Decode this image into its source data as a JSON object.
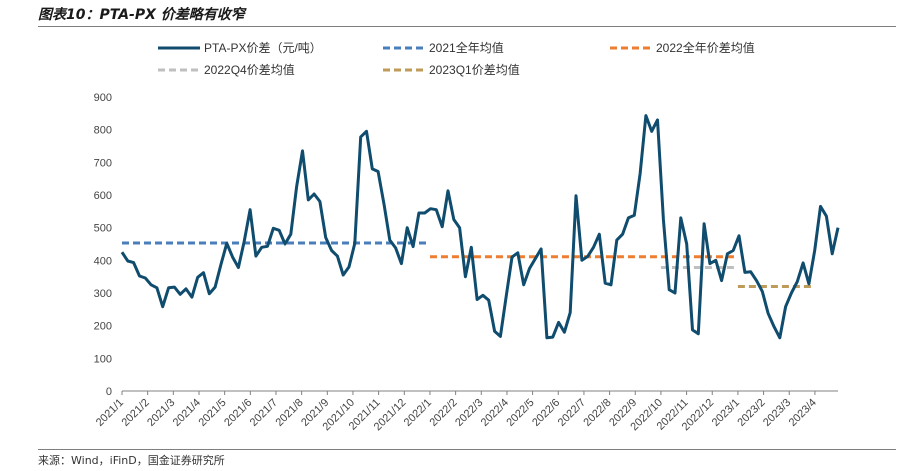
{
  "figure": {
    "title": "图表10：PTA-PX 价差略有收窄",
    "source": "来源：Wind，iFinD，国金证券研究所"
  },
  "chart_data": {
    "type": "line",
    "ylim": [
      0,
      900
    ],
    "yticks": [
      "0",
      "100",
      "200",
      "300",
      "400",
      "500",
      "600",
      "700",
      "800",
      "900"
    ],
    "xticks": [
      "2021/1",
      "2021/2",
      "2021/3",
      "2021/4",
      "2021/5",
      "2021/6",
      "2021/7",
      "2021/8",
      "2021/9",
      "2021/10",
      "2021/11",
      "2021/12",
      "2022/1",
      "2022/2",
      "2022/3",
      "2022/4",
      "2022/5",
      "2022/6",
      "2022/7",
      "2022/8",
      "2022/9",
      "2022/10",
      "2022/11",
      "2022/12",
      "2023/1",
      "2023/2",
      "2023/3",
      "2023/4"
    ],
    "grid": false,
    "legend_position": "top",
    "series": [
      {
        "name": "PTA-PX价差（元/吨）",
        "color": "#0f4c6e",
        "style": "solid",
        "values": [
          425,
          398,
          393,
          352,
          346,
          325,
          316,
          258,
          316,
          318,
          296,
          313,
          287,
          348,
          362,
          298,
          318,
          388,
          452,
          410,
          378,
          458,
          555,
          413,
          440,
          443,
          498,
          492,
          450,
          480,
          625,
          735,
          585,
          603,
          580,
          470,
          430,
          413,
          355,
          380,
          452,
          778,
          795,
          680,
          672,
          572,
          462,
          438,
          390,
          500,
          442,
          545,
          545,
          558,
          555,
          503,
          613,
          525,
          500,
          350,
          440,
          280,
          293,
          278,
          183,
          167,
          290,
          410,
          423,
          325,
          375,
          405,
          435,
          163,
          165,
          210,
          180,
          240,
          598,
          400,
          412,
          440,
          480,
          330,
          325,
          462,
          480,
          530,
          538,
          665,
          843,
          795,
          830,
          525,
          310,
          300,
          530,
          450,
          187,
          175,
          512,
          390,
          400,
          338,
          420,
          430,
          475,
          363,
          365,
          338,
          305,
          238,
          197,
          163,
          258,
          300,
          335,
          392,
          328,
          430,
          565,
          535,
          420,
          500
        ]
      },
      {
        "name": "2021全年均值",
        "color": "#4a7ebb",
        "style": "dashed",
        "values": [
          453,
          453
        ],
        "span": [
          "2021/1",
          "2021/12"
        ]
      },
      {
        "name": "2022全年价差均值",
        "color": "#ed7d31",
        "style": "dashed",
        "values": [
          411,
          411
        ],
        "span": [
          "2022/1",
          "2022/12"
        ]
      },
      {
        "name": "2022Q4价差均值",
        "color": "#bfbfbf",
        "style": "dashed",
        "values": [
          378,
          378
        ],
        "span": [
          "2022/10",
          "2022/12"
        ]
      },
      {
        "name": "2023Q1价差均值",
        "color": "#bf9b5a",
        "style": "dashed",
        "values": [
          320,
          320
        ],
        "span": [
          "2023/1",
          "2023/3"
        ]
      }
    ]
  }
}
